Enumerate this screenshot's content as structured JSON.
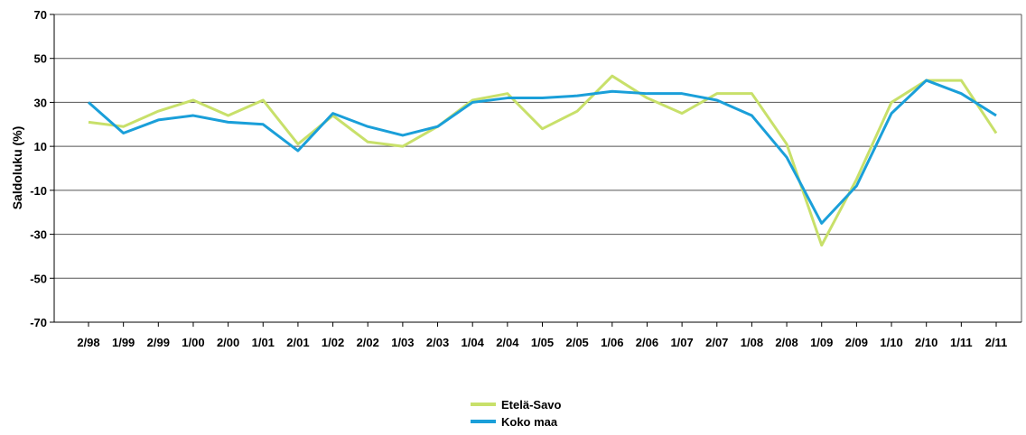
{
  "chart_data": {
    "type": "line",
    "title": "",
    "xlabel": "",
    "ylabel": "Saldoluku (%)",
    "ylim": [
      -70,
      70
    ],
    "yticks": [
      70,
      50,
      30,
      10,
      -10,
      -30,
      -50,
      -70
    ],
    "grid": "horizontal",
    "legend_position": "bottom-center",
    "categories": [
      "2/98",
      "1/99",
      "2/99",
      "1/00",
      "2/00",
      "1/01",
      "2/01",
      "1/02",
      "2/02",
      "1/03",
      "2/03",
      "1/04",
      "2/04",
      "1/05",
      "2/05",
      "1/06",
      "2/06",
      "1/07",
      "2/07",
      "1/08",
      "2/08",
      "1/09",
      "2/09",
      "1/10",
      "2/10",
      "1/11",
      "2/11"
    ],
    "series": [
      {
        "name": "Etelä-Savo",
        "color": "#c8e06a",
        "values": [
          21,
          19,
          26,
          31,
          24,
          31,
          11,
          24,
          12,
          10,
          19,
          31,
          34,
          18,
          26,
          42,
          32,
          25,
          34,
          34,
          11,
          -35,
          -5,
          30,
          40,
          40,
          16
        ]
      },
      {
        "name": "Koko maa",
        "color": "#1a9fd9",
        "values": [
          30,
          16,
          22,
          24,
          21,
          20,
          8,
          25,
          19,
          15,
          19,
          30,
          32,
          32,
          33,
          35,
          34,
          34,
          31,
          24,
          5,
          -25,
          -8,
          25,
          40,
          34,
          24
        ]
      }
    ]
  }
}
